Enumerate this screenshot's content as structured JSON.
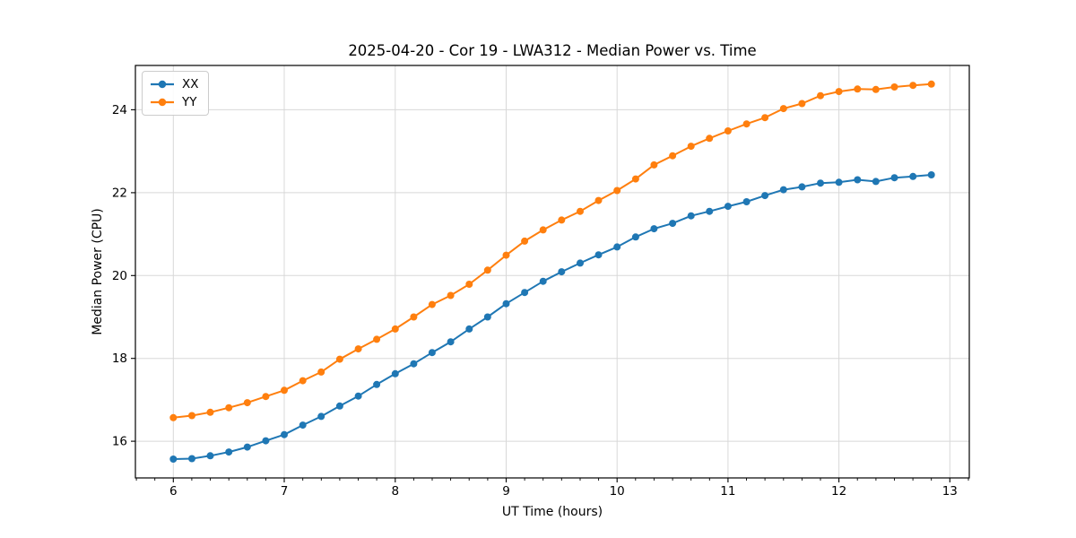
{
  "chart_data": {
    "type": "line",
    "title": "2025-04-20 - Cor 19 - LWA312 - Median Power vs. Time",
    "xlabel": "UT Time (hours)",
    "ylabel": "Median Power (CPU)",
    "legend_position": "upper-left",
    "grid": true,
    "grid_color": "#d8d8d8",
    "spine_color": "#000000",
    "xlim": [
      5.658,
      13.175
    ],
    "ylim": [
      15.115,
      25.07
    ],
    "x_ticks": [
      6,
      7,
      8,
      9,
      10,
      11,
      12,
      13
    ],
    "y_ticks": [
      16,
      18,
      20,
      22,
      24
    ],
    "x_minor_step_hours": 0.1667,
    "x": [
      6.0,
      6.167,
      6.333,
      6.5,
      6.667,
      6.833,
      7.0,
      7.167,
      7.333,
      7.5,
      7.667,
      7.833,
      8.0,
      8.167,
      8.333,
      8.5,
      8.667,
      8.833,
      9.0,
      9.167,
      9.333,
      9.5,
      9.667,
      9.833,
      10.0,
      10.167,
      10.333,
      10.5,
      10.667,
      10.833,
      11.0,
      11.167,
      11.333,
      11.5,
      11.667,
      11.833,
      12.0,
      12.167,
      12.333,
      12.5,
      12.667,
      12.833
    ],
    "series": [
      {
        "name": "XX",
        "color": "#1f77b4",
        "marker": "circle",
        "values": [
          15.57,
          15.58,
          15.65,
          15.74,
          15.86,
          16.01,
          16.16,
          16.39,
          16.6,
          16.85,
          17.09,
          17.37,
          17.63,
          17.87,
          18.14,
          18.4,
          18.71,
          19.0,
          19.32,
          19.59,
          19.86,
          20.09,
          20.3,
          20.5,
          20.69,
          20.93,
          21.13,
          21.26,
          21.44,
          21.55,
          21.67,
          21.78,
          21.93,
          22.07,
          22.14,
          22.23,
          22.25,
          22.31,
          22.27,
          22.36,
          22.39,
          22.43
        ]
      },
      {
        "name": "YY",
        "color": "#ff7f0e",
        "marker": "circle",
        "values": [
          16.57,
          16.62,
          16.7,
          16.81,
          16.93,
          17.08,
          17.23,
          17.46,
          17.67,
          17.98,
          18.23,
          18.46,
          18.71,
          19.0,
          19.3,
          19.52,
          19.79,
          20.13,
          20.49,
          20.83,
          21.1,
          21.34,
          21.55,
          21.81,
          22.05,
          22.33,
          22.67,
          22.89,
          23.12,
          23.31,
          23.49,
          23.66,
          23.81,
          24.03,
          24.15,
          24.34,
          24.44,
          24.5,
          24.49,
          24.55,
          24.59,
          24.62
        ]
      }
    ]
  }
}
